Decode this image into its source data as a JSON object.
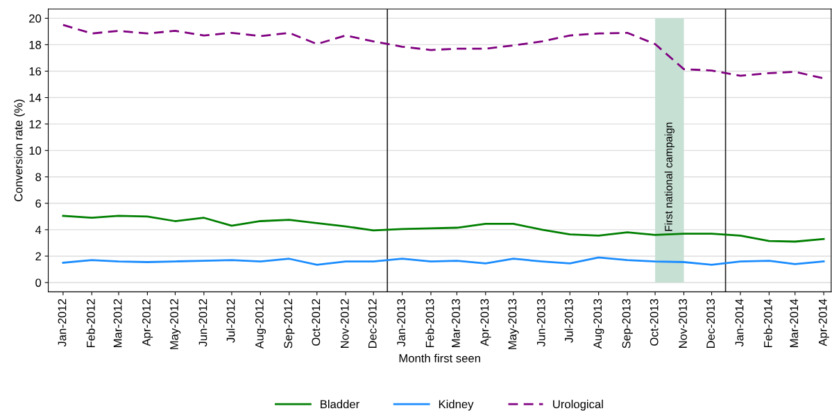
{
  "chart_data": {
    "type": "line",
    "xlabel": "Month first seen",
    "ylabel": "Conversion rate (%)",
    "x": [
      "2012-01",
      "2012-02",
      "2012-03",
      "2012-04",
      "2012-05",
      "2012-06",
      "2012-07",
      "2012-08",
      "2012-09",
      "2012-10",
      "2012-11",
      "2012-12",
      "2013-01",
      "2013-02",
      "2013-03",
      "2013-04",
      "2013-05",
      "2013-06",
      "2013-07",
      "2013-08",
      "2013-09",
      "2013-10",
      "2013-11",
      "2013-12",
      "2014-01",
      "2014-02",
      "2014-03",
      "2014-04"
    ],
    "series": [
      {
        "name": "Bladder",
        "color": "#007f00",
        "line_style": "solid",
        "values": [
          5.05,
          4.9,
          5.05,
          5.0,
          4.65,
          4.9,
          4.3,
          4.65,
          4.75,
          4.5,
          4.25,
          3.95,
          4.05,
          4.1,
          4.15,
          4.45,
          4.45,
          4.0,
          3.65,
          3.55,
          3.8,
          3.6,
          3.7,
          3.7,
          3.55,
          3.15,
          3.1,
          3.3
        ]
      },
      {
        "name": "Kidney",
        "color": "#1a8cff",
        "line_style": "solid",
        "values": [
          1.5,
          1.7,
          1.6,
          1.55,
          1.6,
          1.65,
          1.7,
          1.6,
          1.8,
          1.35,
          1.6,
          1.6,
          1.8,
          1.6,
          1.65,
          1.45,
          1.8,
          1.6,
          1.45,
          1.9,
          1.7,
          1.6,
          1.55,
          1.35,
          1.6,
          1.65,
          1.4,
          1.6
        ]
      },
      {
        "name": "Urological",
        "color": "#800080",
        "line_style": "dashed",
        "values": [
          19.5,
          18.85,
          19.05,
          18.85,
          19.05,
          18.7,
          18.9,
          18.65,
          18.9,
          18.05,
          18.7,
          18.25,
          17.85,
          17.6,
          17.7,
          17.7,
          17.95,
          18.25,
          18.7,
          18.85,
          18.9,
          18.05,
          16.15,
          16.05,
          15.65,
          15.85,
          15.95,
          15.45
        ]
      }
    ],
    "xlim": [
      "2011-12-16",
      "2014-04-09"
    ],
    "xticks": [
      {
        "value": "2012-01",
        "label": "Jan-2012"
      },
      {
        "value": "2012-02",
        "label": "Feb-2012"
      },
      {
        "value": "2012-03",
        "label": "Mar-2012"
      },
      {
        "value": "2012-04",
        "label": "Apr-2012"
      },
      {
        "value": "2012-05",
        "label": "May-2012"
      },
      {
        "value": "2012-06",
        "label": "Jun-2012"
      },
      {
        "value": "2012-07",
        "label": "Jul-2012"
      },
      {
        "value": "2012-08",
        "label": "Aug-2012"
      },
      {
        "value": "2012-09",
        "label": "Sep-2012"
      },
      {
        "value": "2012-10",
        "label": "Oct-2012"
      },
      {
        "value": "2012-11",
        "label": "Nov-2012"
      },
      {
        "value": "2012-12",
        "label": "Dec-2012"
      },
      {
        "value": "2013-01",
        "label": "Jan-2013"
      },
      {
        "value": "2013-02",
        "label": "Feb-2013"
      },
      {
        "value": "2013-03",
        "label": "Mar-2013"
      },
      {
        "value": "2013-04",
        "label": "Apr-2013"
      },
      {
        "value": "2013-05",
        "label": "May-2013"
      },
      {
        "value": "2013-06",
        "label": "Jun-2013"
      },
      {
        "value": "2013-07",
        "label": "Jul-2013"
      },
      {
        "value": "2013-08",
        "label": "Aug-2013"
      },
      {
        "value": "2013-09",
        "label": "Sep-2013"
      },
      {
        "value": "2013-10",
        "label": "Oct-2013"
      },
      {
        "value": "2013-11",
        "label": "Nov-2013"
      },
      {
        "value": "2013-12",
        "label": "Dec-2013"
      },
      {
        "value": "2014-01",
        "label": "Jan-2014"
      },
      {
        "value": "2014-02",
        "label": "Feb-2014"
      },
      {
        "value": "2014-03",
        "label": "Mar-2014"
      },
      {
        "value": "2014-04",
        "label": "Apr-2014"
      }
    ],
    "ylim": [
      -0.7,
      20.7
    ],
    "yticks": [
      0,
      2,
      4,
      6,
      8,
      10,
      12,
      14,
      16,
      18,
      20
    ],
    "grid": "y",
    "legend": "bottom",
    "ref_lines": [
      {
        "axis": "x",
        "value": "2012-12-16",
        "color": "#222222"
      },
      {
        "axis": "x",
        "value": "2013-12-16",
        "color": "#222222"
      }
    ],
    "bands": [
      {
        "axis": "x",
        "from": "2013-10",
        "to": "2013-11",
        "label": "First national campaign",
        "color": "#c6e0d4"
      }
    ]
  }
}
